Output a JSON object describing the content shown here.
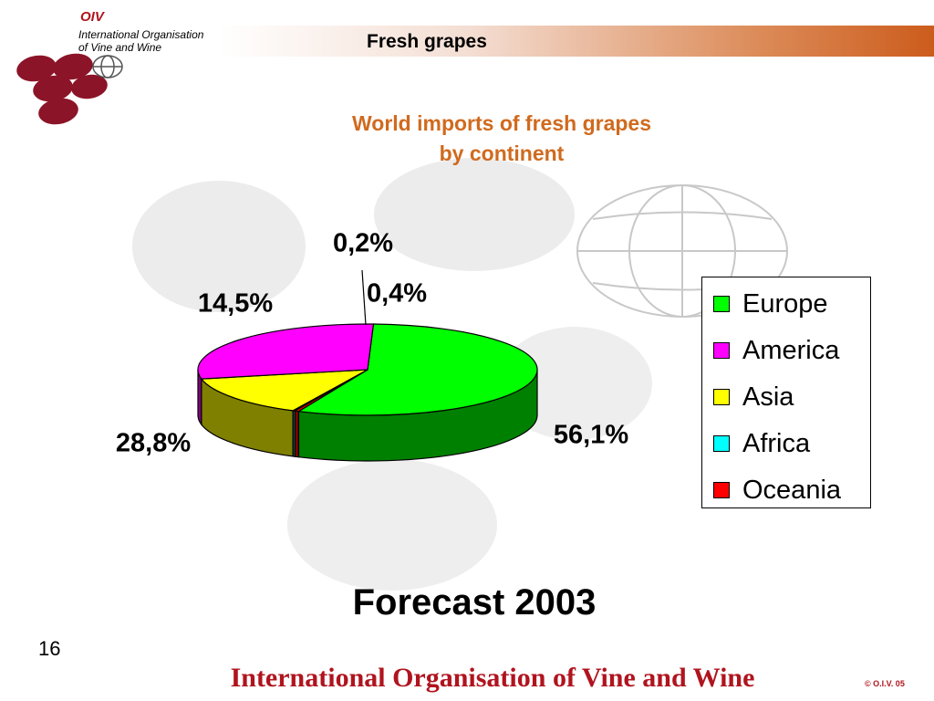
{
  "header": {
    "title": "Fresh grapes",
    "logo_abbr": "OIV",
    "logo_line1": "International Organisation",
    "logo_line2": "of  Vine  and  Wine"
  },
  "chart_data": {
    "type": "pie",
    "title_line1": "World imports of fresh grapes",
    "title_line2": "by continent",
    "series": [
      {
        "name": "Europe",
        "value": 56.1,
        "label": "56,1%",
        "color": "#00ff00",
        "side_color": "#008000"
      },
      {
        "name": "Oceania",
        "value": 0.4,
        "label": "0,4%",
        "color": "#ff0000",
        "side_color": "#800000"
      },
      {
        "name": "Africa",
        "value": 0.2,
        "label": "0,2%",
        "color": "#00ffff",
        "side_color": "#008080"
      },
      {
        "name": "Asia",
        "value": 14.5,
        "label": "14,5%",
        "color": "#ffff00",
        "side_color": "#808000"
      },
      {
        "name": "America",
        "value": 28.8,
        "label": "28,8%",
        "color": "#ff00ff",
        "side_color": "#800080"
      }
    ],
    "legend": {
      "position": "right",
      "entries": [
        "Europe",
        "America",
        "Asia",
        "Africa",
        "Oceania"
      ]
    },
    "style": "3d-pie"
  },
  "caption": "Forecast 2003",
  "footer": {
    "page_number": "16",
    "organisation": "International Organisation of Vine and Wine",
    "copyright": "© O.I.V. 05"
  },
  "colors": {
    "brand_red": "#b0141e",
    "title_orange": "#d06a1e"
  }
}
